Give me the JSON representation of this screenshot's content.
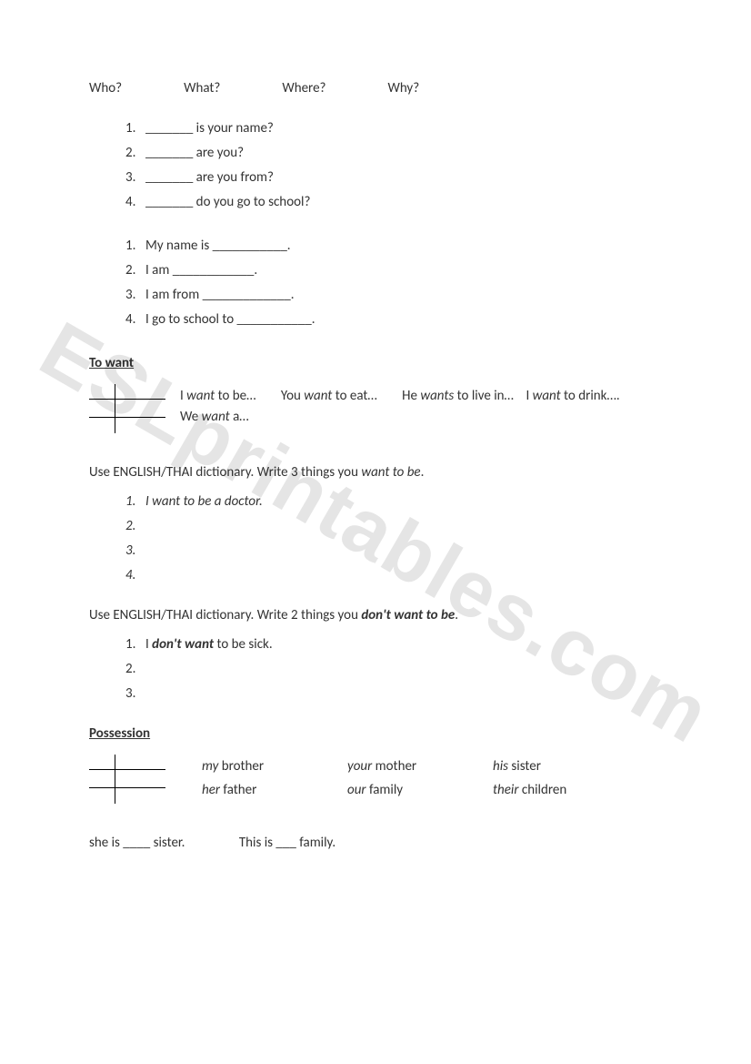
{
  "watermark": "ESLprintables.com",
  "question_words": [
    "Who?",
    "What?",
    "Where?",
    "Why?"
  ],
  "fill_questions": [
    {
      "n": "1.",
      "text": "_______ is your name?"
    },
    {
      "n": "2.",
      "text": "_______ are you?"
    },
    {
      "n": "3.",
      "text": "_______ are you from?"
    },
    {
      "n": "4.",
      "text": "_______ do you go to school?"
    }
  ],
  "fill_answers": [
    {
      "n": "1.",
      "text": "My name is ___________."
    },
    {
      "n": "2.",
      "text": "I am ____________."
    },
    {
      "n": "3.",
      "text": "I am from _____________."
    },
    {
      "n": "4.",
      "text": "I go to school to ___________."
    }
  ],
  "to_want": {
    "heading": "To want",
    "ex1_a": "I ",
    "ex1_b": "want",
    "ex1_c": " to be…",
    "ex2_a": "You ",
    "ex2_b": "want",
    "ex2_c": " to eat…",
    "ex3_a": "He ",
    "ex3_b": "wants",
    "ex3_c": " to live in…",
    "ex4_a": "I ",
    "ex4_b": "want",
    "ex4_c": " to drink….",
    "ex5_a": "We ",
    "ex5_b": "want",
    "ex5_c": " a…"
  },
  "instruct1_a": "Use ENGLISH/THAI dictionary.  Write 3 things you ",
  "instruct1_b": "want to be",
  "instruct1_c": ".",
  "want_list": [
    {
      "n": "1.",
      "text": "I want to be a doctor."
    },
    {
      "n": "2.",
      "text": ""
    },
    {
      "n": "3.",
      "text": ""
    },
    {
      "n": "4.",
      "text": ""
    }
  ],
  "instruct2_a": "Use ENGLISH/THAI dictionary.  Write 2 things you ",
  "instruct2_b": "don't want to be",
  "instruct2_c": ".",
  "dont_list_1_a": "I ",
  "dont_list_1_b": "don't want",
  "dont_list_1_c": " to be sick.",
  "dont_list": [
    {
      "n": "1."
    },
    {
      "n": "2."
    },
    {
      "n": "3."
    }
  ],
  "possession": {
    "heading": "Possession",
    "cells": [
      {
        "i": "my",
        "t": " brother"
      },
      {
        "i": "your",
        "t": " mother"
      },
      {
        "i": "his",
        "t": " sister"
      },
      {
        "i": "her",
        "t": " father"
      },
      {
        "i": "our",
        "t": " family"
      },
      {
        "i": "their",
        "t": " children"
      }
    ]
  },
  "fill_poss_a": "she is ____ sister.",
  "fill_poss_b": "This is ___ family."
}
